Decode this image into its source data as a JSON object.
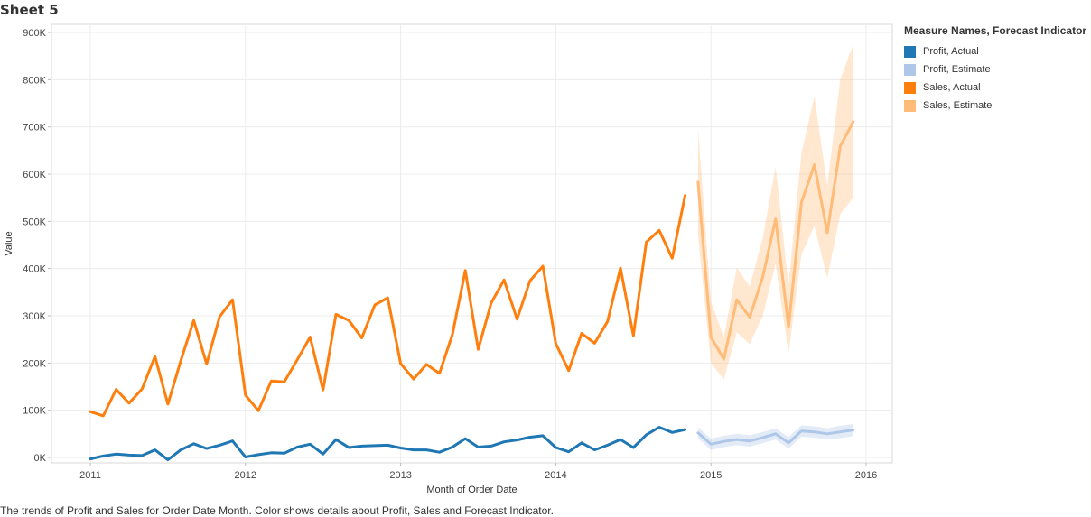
{
  "sheet": {
    "title": "Sheet 5"
  },
  "caption": "The trends of Profit and Sales for Order Date Month.  Color shows details about Profit, Sales and Forecast Indicator.",
  "legend": {
    "title": "Measure Names, Forecast Indicator",
    "items": [
      {
        "label": "Profit, Actual",
        "color": "#1f77b4"
      },
      {
        "label": "Profit, Estimate",
        "color": "#aec7e8"
      },
      {
        "label": "Sales, Actual",
        "color": "#ff7f0e"
      },
      {
        "label": "Sales, Estimate",
        "color": "#ffbb78"
      }
    ]
  },
  "chart_data": {
    "type": "line",
    "xlabel": "Month of Order Date",
    "ylabel": "Value",
    "ylim": [
      0,
      900000
    ],
    "yticks": [
      0,
      100000,
      200000,
      300000,
      400000,
      500000,
      600000,
      700000,
      800000,
      900000
    ],
    "ytick_labels": [
      "0K",
      "100K",
      "200K",
      "300K",
      "400K",
      "500K",
      "600K",
      "700K",
      "800K",
      "900K"
    ],
    "xticks": [
      "2011",
      "2012",
      "2013",
      "2014",
      "2015",
      "2016"
    ],
    "grid": true,
    "legend_position": "right",
    "series": [
      {
        "name": "Sales, Actual",
        "color": "#ff7f0e",
        "start": "2011-01",
        "values": [
          97000,
          88000,
          144000,
          115000,
          145000,
          214000,
          113000,
          205000,
          290000,
          198000,
          298000,
          334000,
          132000,
          99000,
          162000,
          160000,
          207000,
          255000,
          143000,
          303000,
          290000,
          253000,
          323000,
          338000,
          199000,
          166000,
          197000,
          178000,
          260000,
          396000,
          229000,
          327000,
          376000,
          293000,
          374000,
          405000,
          241000,
          184000,
          263000,
          242000,
          288000,
          401000,
          258000,
          456000,
          481000,
          422000,
          555000
        ]
      },
      {
        "name": "Profit, Actual",
        "color": "#1f77b4",
        "start": "2011-01",
        "values": [
          -3000,
          3000,
          7000,
          5000,
          4000,
          16000,
          -5000,
          16000,
          29000,
          19000,
          26000,
          35000,
          1000,
          6000,
          10000,
          9000,
          22000,
          28000,
          7000,
          38000,
          21000,
          24000,
          25000,
          26000,
          20000,
          16000,
          16000,
          11000,
          22000,
          40000,
          22000,
          24000,
          33000,
          37000,
          43000,
          46000,
          21000,
          12000,
          31000,
          16000,
          26000,
          38000,
          21000,
          48000,
          64000,
          53000,
          59000
        ]
      },
      {
        "name": "Sales, Estimate",
        "color": "#ffbb78",
        "start": "2014-12",
        "values": [
          583000,
          255000,
          208000,
          334000,
          297000,
          382000,
          505000,
          276000,
          540000,
          620000,
          476000,
          659000,
          711000
        ],
        "lower": [
          470000,
          200000,
          165000,
          265000,
          240000,
          300000,
          410000,
          220000,
          430000,
          490000,
          380000,
          515000,
          550000
        ],
        "upper": [
          695000,
          330000,
          255000,
          402000,
          362000,
          465000,
          615000,
          365000,
          645000,
          765000,
          575000,
          800000,
          875000
        ]
      },
      {
        "name": "Profit, Estimate",
        "color": "#aec7e8",
        "start": "2014-12",
        "values": [
          52000,
          28000,
          34000,
          38000,
          35000,
          42000,
          50000,
          31000,
          56000,
          54000,
          50000,
          54000,
          58000
        ],
        "lower": [
          40000,
          16000,
          22000,
          26000,
          23000,
          30000,
          38000,
          19000,
          44000,
          42000,
          38000,
          41000,
          45000
        ],
        "upper": [
          64000,
          40000,
          46000,
          50000,
          47000,
          54000,
          62000,
          43000,
          68000,
          66000,
          62000,
          67000,
          71000
        ]
      }
    ]
  }
}
